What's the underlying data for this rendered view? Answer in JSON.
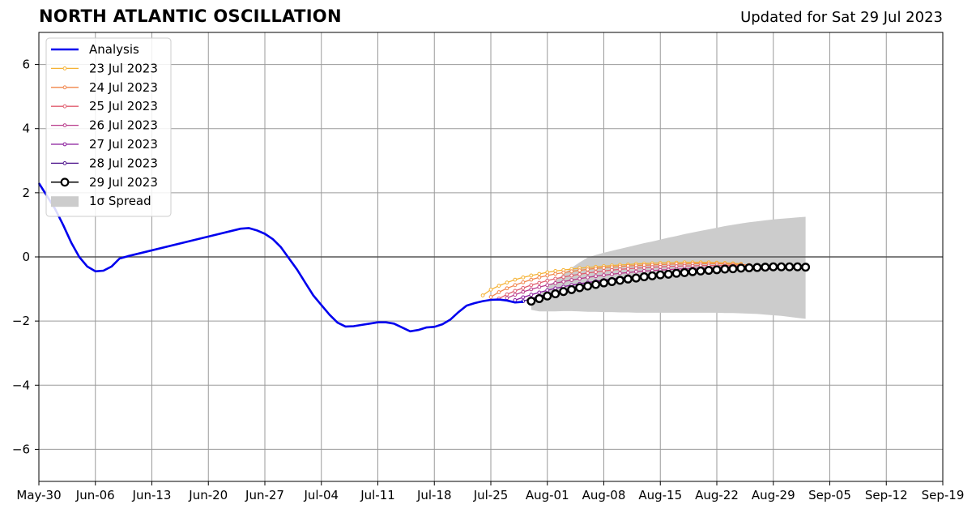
{
  "title": "NORTH ATLANTIC OSCILLATION",
  "subtitle": "Updated for Sat 29 Jul 2023",
  "chart_data": {
    "type": "line",
    "xlim_dates": [
      "2023-05-30",
      "2023-09-19"
    ],
    "ylim": [
      -7,
      7
    ],
    "yticks": [
      -6,
      -4,
      -2,
      0,
      2,
      4,
      6
    ],
    "ytick_labels": [
      "−6",
      "−4",
      "−2",
      "0",
      "2",
      "4",
      "6"
    ],
    "xticks": [
      "2023-05-30",
      "2023-06-06",
      "2023-06-13",
      "2023-06-20",
      "2023-06-27",
      "2023-07-04",
      "2023-07-11",
      "2023-07-18",
      "2023-07-25",
      "2023-08-01",
      "2023-08-08",
      "2023-08-15",
      "2023-08-22",
      "2023-08-29",
      "2023-09-05",
      "2023-09-12",
      "2023-09-19"
    ],
    "xtick_labels": [
      "May-30",
      "Jun-06",
      "Jun-13",
      "Jun-20",
      "Jun-27",
      "Jul-04",
      "Jul-11",
      "Jul-18",
      "Jul-25",
      "Aug-01",
      "Aug-08",
      "Aug-15",
      "Aug-22",
      "Aug-29",
      "Sep-05",
      "Sep-12",
      "Sep-19"
    ],
    "grid": true,
    "legend_position": "top-left",
    "analysis": {
      "name": "Analysis",
      "color": "#0000ee",
      "points": [
        [
          "2023-05-30",
          2.3
        ],
        [
          "2023-05-31",
          1.9
        ],
        [
          "2023-06-01",
          1.5
        ],
        [
          "2023-06-02",
          1.0
        ],
        [
          "2023-06-03",
          0.45
        ],
        [
          "2023-06-04",
          0.0
        ],
        [
          "2023-06-05",
          -0.3
        ],
        [
          "2023-06-06",
          -0.45
        ],
        [
          "2023-06-07",
          -0.43
        ],
        [
          "2023-06-08",
          -0.3
        ],
        [
          "2023-06-09",
          -0.05
        ],
        [
          "2023-06-10",
          0.02
        ],
        [
          "2023-06-24",
          0.88
        ],
        [
          "2023-06-25",
          0.9
        ],
        [
          "2023-06-26",
          0.83
        ],
        [
          "2023-06-27",
          0.72
        ],
        [
          "2023-06-28",
          0.55
        ],
        [
          "2023-06-29",
          0.3
        ],
        [
          "2023-06-30",
          -0.05
        ],
        [
          "2023-07-01",
          -0.4
        ],
        [
          "2023-07-02",
          -0.8
        ],
        [
          "2023-07-03",
          -1.2
        ],
        [
          "2023-07-04",
          -1.5
        ],
        [
          "2023-07-05",
          -1.8
        ],
        [
          "2023-07-06",
          -2.05
        ],
        [
          "2023-07-07",
          -2.17
        ],
        [
          "2023-07-08",
          -2.16
        ],
        [
          "2023-07-09",
          -2.12
        ],
        [
          "2023-07-10",
          -2.08
        ],
        [
          "2023-07-11",
          -2.04
        ],
        [
          "2023-07-12",
          -2.04
        ],
        [
          "2023-07-13",
          -2.08
        ],
        [
          "2023-07-14",
          -2.2
        ],
        [
          "2023-07-15",
          -2.32
        ],
        [
          "2023-07-16",
          -2.28
        ],
        [
          "2023-07-17",
          -2.2
        ],
        [
          "2023-07-18",
          -2.18
        ],
        [
          "2023-07-19",
          -2.1
        ],
        [
          "2023-07-20",
          -1.95
        ],
        [
          "2023-07-21",
          -1.72
        ],
        [
          "2023-07-22",
          -1.52
        ],
        [
          "2023-07-23",
          -1.44
        ],
        [
          "2023-07-24",
          -1.38
        ],
        [
          "2023-07-25",
          -1.34
        ],
        [
          "2023-07-26",
          -1.33
        ],
        [
          "2023-07-27",
          -1.36
        ],
        [
          "2023-07-28",
          -1.42
        ],
        [
          "2023-07-29",
          -1.4
        ]
      ]
    },
    "forecasts": [
      {
        "name": "23 Jul 2023",
        "color": "#f5b234",
        "start": "2023-07-24",
        "values": [
          -1.2,
          -1.02,
          -0.9,
          -0.8,
          -0.71,
          -0.64,
          -0.58,
          -0.53,
          -0.48,
          -0.44,
          -0.41,
          -0.38,
          -0.35,
          -0.33,
          -0.31,
          -0.29,
          -0.27,
          -0.25,
          -0.24,
          -0.22,
          -0.21,
          -0.2,
          -0.19,
          -0.18,
          -0.18,
          -0.17,
          -0.17,
          -0.17,
          -0.17,
          -0.18,
          -0.19,
          -0.2,
          -0.22
        ]
      },
      {
        "name": "24 Jul 2023",
        "color": "#f0844a",
        "start": "2023-07-25",
        "values": [
          -1.25,
          -1.1,
          -0.98,
          -0.88,
          -0.79,
          -0.71,
          -0.64,
          -0.58,
          -0.53,
          -0.49,
          -0.45,
          -0.42,
          -0.39,
          -0.36,
          -0.34,
          -0.32,
          -0.3,
          -0.28,
          -0.27,
          -0.26,
          -0.25,
          -0.24,
          -0.23,
          -0.22,
          -0.22,
          -0.21,
          -0.21,
          -0.21,
          -0.21,
          -0.22,
          -0.23,
          -0.24,
          -0.25
        ]
      },
      {
        "name": "25 Jul 2023",
        "color": "#e05c6e",
        "start": "2023-07-26",
        "values": [
          -1.3,
          -1.17,
          -1.06,
          -0.97,
          -0.88,
          -0.81,
          -0.74,
          -0.68,
          -0.63,
          -0.58,
          -0.54,
          -0.5,
          -0.47,
          -0.44,
          -0.41,
          -0.39,
          -0.37,
          -0.35,
          -0.34,
          -0.32,
          -0.31,
          -0.3,
          -0.29,
          -0.28,
          -0.28,
          -0.27,
          -0.27,
          -0.27,
          -0.27,
          -0.27,
          -0.28,
          -0.29,
          -0.3
        ]
      },
      {
        "name": "26 Jul 2023",
        "color": "#b83a8a",
        "start": "2023-07-27",
        "values": [
          -1.28,
          -1.18,
          -1.09,
          -1.01,
          -0.94,
          -0.88,
          -0.82,
          -0.77,
          -0.72,
          -0.68,
          -0.64,
          -0.6,
          -0.57,
          -0.54,
          -0.51,
          -0.49,
          -0.46,
          -0.44,
          -0.43,
          -0.41,
          -0.4,
          -0.38,
          -0.37,
          -0.36,
          -0.35,
          -0.34,
          -0.34,
          -0.33,
          -0.33,
          -0.33,
          -0.33,
          -0.34,
          -0.35
        ]
      },
      {
        "name": "27 Jul 2023",
        "color": "#8a1c9c",
        "start": "2023-07-28",
        "values": [
          -1.35,
          -1.26,
          -1.18,
          -1.11,
          -1.04,
          -0.98,
          -0.93,
          -0.88,
          -0.84,
          -0.8,
          -0.76,
          -0.72,
          -0.69,
          -0.66,
          -0.63,
          -0.6,
          -0.58,
          -0.55,
          -0.53,
          -0.51,
          -0.49,
          -0.47,
          -0.46,
          -0.44,
          -0.43,
          -0.42,
          -0.41,
          -0.4,
          -0.39,
          -0.38,
          -0.38,
          -0.38,
          -0.38
        ]
      },
      {
        "name": "28 Jul 2023",
        "color": "#4a0f8a",
        "start": "2023-07-29",
        "values": [
          -1.38,
          -1.3,
          -1.23,
          -1.16,
          -1.1,
          -1.04,
          -0.98,
          -0.93,
          -0.88,
          -0.84,
          -0.8,
          -0.76,
          -0.72,
          -0.69,
          -0.66,
          -0.63,
          -0.6,
          -0.57,
          -0.55,
          -0.52,
          -0.5,
          -0.48,
          -0.46,
          -0.45,
          -0.43,
          -0.42,
          -0.4,
          -0.39,
          -0.38,
          -0.37,
          -0.36,
          -0.35,
          -0.35
        ]
      }
    ],
    "latest": {
      "name": "29 Jul 2023",
      "color": "#000000",
      "start": "2023-07-30",
      "values": [
        -1.38,
        -1.3,
        -1.22,
        -1.15,
        -1.08,
        -1.02,
        -0.96,
        -0.91,
        -0.86,
        -0.81,
        -0.77,
        -0.73,
        -0.69,
        -0.66,
        -0.62,
        -0.59,
        -0.56,
        -0.54,
        -0.51,
        -0.49,
        -0.46,
        -0.44,
        -0.42,
        -0.4,
        -0.38,
        -0.37,
        -0.35,
        -0.34,
        -0.33,
        -0.32,
        -0.31,
        -0.31,
        -0.31,
        -0.31,
        -0.32
      ]
    },
    "spread": {
      "name": "1σ Spread",
      "color": "#cccccc",
      "start": "2023-07-30",
      "upper": [
        -1.45,
        -1.2,
        -0.96,
        -0.74,
        -0.53,
        -0.34,
        -0.17,
        -0.02,
        0.06,
        0.13,
        0.19,
        0.25,
        0.31,
        0.37,
        0.43,
        0.48,
        0.54,
        0.6,
        0.65,
        0.71,
        0.76,
        0.81,
        0.86,
        0.91,
        0.96,
        1.0,
        1.04,
        1.08,
        1.11,
        1.14,
        1.17,
        1.19,
        1.21,
        1.23,
        1.25
      ],
      "lower": [
        -1.65,
        -1.7,
        -1.7,
        -1.7,
        -1.69,
        -1.69,
        -1.7,
        -1.71,
        -1.71,
        -1.72,
        -1.72,
        -1.73,
        -1.73,
        -1.74,
        -1.74,
        -1.74,
        -1.74,
        -1.74,
        -1.74,
        -1.74,
        -1.74,
        -1.74,
        -1.74,
        -1.74,
        -1.75,
        -1.75,
        -1.76,
        -1.77,
        -1.78,
        -1.8,
        -1.82,
        -1.84,
        -1.87,
        -1.9,
        -1.93
      ]
    },
    "legend": [
      {
        "label": "Analysis",
        "color": "#0000ee",
        "style": "analysis"
      },
      {
        "label": "23 Jul 2023",
        "color": "#f5b234",
        "style": "forecast"
      },
      {
        "label": "24 Jul 2023",
        "color": "#f0844a",
        "style": "forecast"
      },
      {
        "label": "25 Jul 2023",
        "color": "#e05c6e",
        "style": "forecast"
      },
      {
        "label": "26 Jul 2023",
        "color": "#b83a8a",
        "style": "forecast"
      },
      {
        "label": "27 Jul 2023",
        "color": "#8a1c9c",
        "style": "forecast"
      },
      {
        "label": "28 Jul 2023",
        "color": "#4a0f8a",
        "style": "forecast"
      },
      {
        "label": "29 Jul 2023",
        "color": "#000000",
        "style": "latest"
      },
      {
        "label": "1σ Spread",
        "color": "#cccccc",
        "style": "spread"
      }
    ]
  }
}
